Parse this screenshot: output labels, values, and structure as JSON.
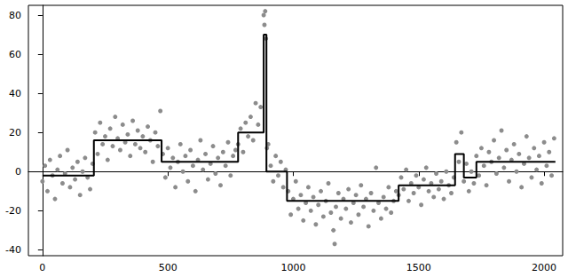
{
  "chart_data": {
    "type": "scatter",
    "xlim": [
      -56,
      2074
    ],
    "xticks": [
      0,
      500,
      1000,
      1500,
      2000
    ],
    "ylim": [
      -43,
      85
    ],
    "yticks": [
      -40,
      -20,
      0,
      20,
      40,
      60,
      80
    ],
    "grid": false,
    "series": [
      {
        "type": "scatter",
        "color": "#8c8c8c",
        "marker": "circle",
        "x": [
          0,
          10,
          20,
          30,
          40,
          50,
          60,
          70,
          80,
          90,
          100,
          110,
          120,
          130,
          140,
          150,
          160,
          170,
          180,
          190,
          200,
          210,
          220,
          230,
          240,
          250,
          260,
          270,
          280,
          290,
          300,
          310,
          320,
          330,
          340,
          350,
          360,
          370,
          380,
          390,
          400,
          410,
          420,
          430,
          440,
          450,
          460,
          470,
          480,
          490,
          500,
          510,
          520,
          530,
          540,
          550,
          560,
          570,
          580,
          590,
          600,
          610,
          620,
          630,
          640,
          650,
          660,
          670,
          680,
          690,
          700,
          710,
          720,
          730,
          740,
          750,
          760,
          770,
          780,
          790,
          800,
          810,
          820,
          830,
          840,
          850,
          860,
          870,
          882,
          885,
          888,
          891,
          895,
          900,
          910,
          920,
          930,
          940,
          950,
          960,
          970,
          980,
          990,
          1000,
          1010,
          1020,
          1030,
          1040,
          1050,
          1060,
          1070,
          1080,
          1090,
          1100,
          1110,
          1120,
          1130,
          1140,
          1150,
          1160,
          1165,
          1170,
          1180,
          1190,
          1200,
          1210,
          1220,
          1230,
          1240,
          1250,
          1260,
          1270,
          1280,
          1290,
          1300,
          1310,
          1320,
          1330,
          1340,
          1350,
          1360,
          1370,
          1380,
          1390,
          1400,
          1410,
          1420,
          1430,
          1440,
          1450,
          1460,
          1470,
          1480,
          1490,
          1500,
          1510,
          1520,
          1530,
          1540,
          1550,
          1560,
          1570,
          1580,
          1590,
          1600,
          1610,
          1620,
          1630,
          1640,
          1650,
          1660,
          1670,
          1680,
          1690,
          1700,
          1710,
          1720,
          1730,
          1740,
          1750,
          1760,
          1770,
          1780,
          1790,
          1800,
          1810,
          1820,
          1830,
          1840,
          1850,
          1860,
          1870,
          1880,
          1890,
          1900,
          1910,
          1920,
          1930,
          1940,
          1950,
          1960,
          1970,
          1980,
          1990,
          2000,
          2010,
          2020,
          2030,
          2040
        ],
        "values": [
          -5,
          3,
          -10,
          6,
          -2,
          -14,
          1,
          8,
          -6,
          -1,
          11,
          -8,
          2,
          -4,
          5,
          -12,
          0,
          7,
          -3,
          -9,
          4,
          20,
          9,
          25,
          14,
          18,
          6,
          22,
          13,
          28,
          17,
          11,
          24,
          15,
          19,
          8,
          26,
          14,
          21,
          12,
          18,
          10,
          23,
          16,
          5,
          20,
          13,
          31,
          9,
          -3,
          12,
          2,
          7,
          -8,
          5,
          14,
          0,
          8,
          -5,
          11,
          3,
          -10,
          6,
          16,
          1,
          9,
          -4,
          4,
          13,
          -1,
          7,
          -7,
          10,
          3,
          15,
          -2,
          8,
          11,
          14,
          22,
          10,
          25,
          18,
          28,
          16,
          35,
          24,
          33,
          80,
          75,
          82,
          68,
          12,
          14,
          3,
          -5,
          8,
          -2,
          5,
          -8,
          1,
          -10,
          -22,
          -14,
          -5,
          -19,
          -12,
          -25,
          -16,
          -8,
          -20,
          -13,
          -27,
          -17,
          -10,
          -23,
          -15,
          -6,
          -21,
          -30,
          -37,
          -18,
          -11,
          -24,
          -14,
          -19,
          -9,
          -26,
          -16,
          -12,
          -22,
          -7,
          -18,
          -14,
          -28,
          -11,
          -20,
          2,
          -16,
          -24,
          -13,
          -19,
          -8,
          -21,
          -15,
          -10,
          -12,
          -3,
          -9,
          1,
          -15,
          -6,
          -11,
          -2,
          -8,
          -17,
          -4,
          2,
          -10,
          -6,
          -13,
          -1,
          -9,
          -5,
          -14,
          0,
          -7,
          -11,
          -3,
          15,
          5,
          20,
          -5,
          4,
          -10,
          0,
          -6,
          8,
          -2,
          12,
          3,
          -7,
          10,
          5,
          16,
          -1,
          7,
          21,
          2,
          11,
          -5,
          6,
          14,
          0,
          9,
          -8,
          4,
          18,
          7,
          -3,
          12,
          1,
          8,
          -6,
          15,
          3,
          10,
          -2,
          17
        ]
      },
      {
        "type": "line",
        "color": "#000000",
        "line_style": "solid",
        "x": [
          0,
          205,
          205,
          475,
          475,
          780,
          780,
          882,
          882,
          893,
          893,
          975,
          975,
          1420,
          1420,
          1645,
          1645,
          1680,
          1680,
          1730,
          1730,
          2045
        ],
        "values": [
          -2,
          -2,
          16,
          16,
          5,
          5,
          20,
          20,
          70,
          70,
          0,
          0,
          -15,
          -15,
          -7,
          -7,
          9,
          9,
          -3,
          -3,
          5,
          5
        ]
      }
    ]
  }
}
